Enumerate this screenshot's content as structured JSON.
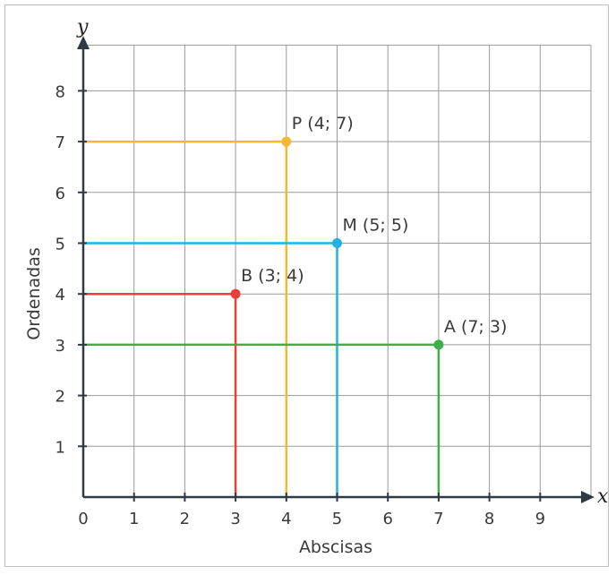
{
  "chart_data": {
    "type": "scatter",
    "title": "",
    "xlabel": "Abscisas",
    "ylabel": "Ordenadas",
    "x_var": "x",
    "y_var": "y",
    "xlim": [
      0,
      10
    ],
    "ylim": [
      0,
      9
    ],
    "x_ticks": [
      "0",
      "1",
      "2",
      "3",
      "4",
      "5",
      "6",
      "7",
      "8",
      "9"
    ],
    "y_ticks": [
      "1",
      "2",
      "3",
      "4",
      "5",
      "6",
      "7",
      "8"
    ],
    "grid": true,
    "points": [
      {
        "name": "P",
        "label": "P (4; 7)",
        "x": 4,
        "y": 7,
        "color": "#f6b731"
      },
      {
        "name": "M",
        "label": "M (5; 5)",
        "x": 5,
        "y": 5,
        "color": "#21b2e3"
      },
      {
        "name": "B",
        "label": "B (3; 4)",
        "x": 3,
        "y": 4,
        "color": "#e8403a"
      },
      {
        "name": "A",
        "label": "A (7; 3)",
        "x": 7,
        "y": 3,
        "color": "#3fae49"
      }
    ]
  }
}
